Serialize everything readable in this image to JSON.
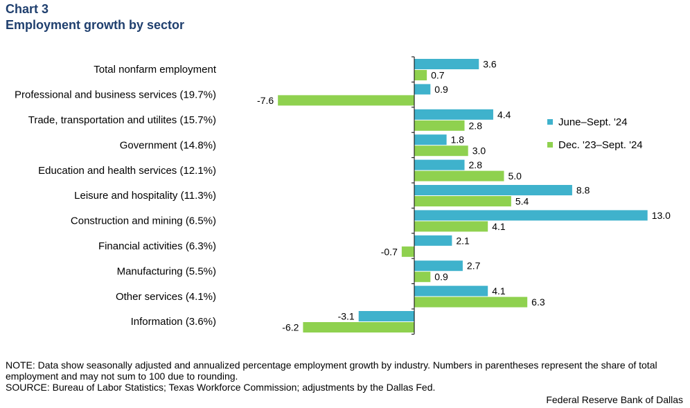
{
  "header": {
    "chart_number": "Chart 3",
    "title": "Employment growth by sector"
  },
  "chart_data": {
    "type": "bar",
    "orientation": "horizontal",
    "title": "Employment growth by sector",
    "categories": [
      "Total nonfarm employment",
      "Professional and business services (19.7%)",
      "Trade, transportation and utilites (15.7%)",
      "Government  (14.8%)",
      "Education and health services (12.1%)",
      "Leisure and hospitality (11.3%)",
      "Construction and mining (6.5%)",
      "Financial activities  (6.3%)",
      "Manufacturing  (5.5%)",
      "Other services  (4.1%)",
      "Information  (3.6%)"
    ],
    "series": [
      {
        "name": "June–Sept. '24",
        "color": "#3fb2cc",
        "values": [
          3.6,
          0.9,
          4.4,
          1.8,
          2.8,
          8.8,
          13.0,
          2.1,
          2.7,
          4.1,
          -3.1
        ],
        "labels": [
          "3.6",
          "0.9",
          "4.4",
          "1.8",
          "2.8",
          "8.8",
          "13.0",
          "2.1",
          "2.7",
          "4.1",
          "-3.1"
        ]
      },
      {
        "name": "Dec. '23–Sept. '24",
        "color": "#8fd14f",
        "values": [
          0.7,
          -7.6,
          2.8,
          3.0,
          5.0,
          5.4,
          4.1,
          -0.7,
          0.9,
          6.3,
          -6.2
        ],
        "labels": [
          "0.7",
          "-7.6",
          "2.8",
          "3.0",
          "5.0",
          "5.4",
          "4.1",
          "-0.7",
          "0.9",
          "6.3",
          "-6.2"
        ]
      }
    ],
    "xlim": [
      -8,
      13.2
    ],
    "xlabel": "",
    "ylabel": "",
    "grid": false,
    "legend": "right"
  },
  "footer": {
    "note": "NOTE: Data show seasonally adjusted and annualized percentage employment growth by industry. Numbers in parentheses represent the share of total employment and may not sum to 100 due to rounding.",
    "source": "SOURCE: Bureau of Labor Statistics; Texas Workforce Commission; adjustments by the Dallas Fed.",
    "credit": "Federal Reserve Bank of Dallas"
  }
}
